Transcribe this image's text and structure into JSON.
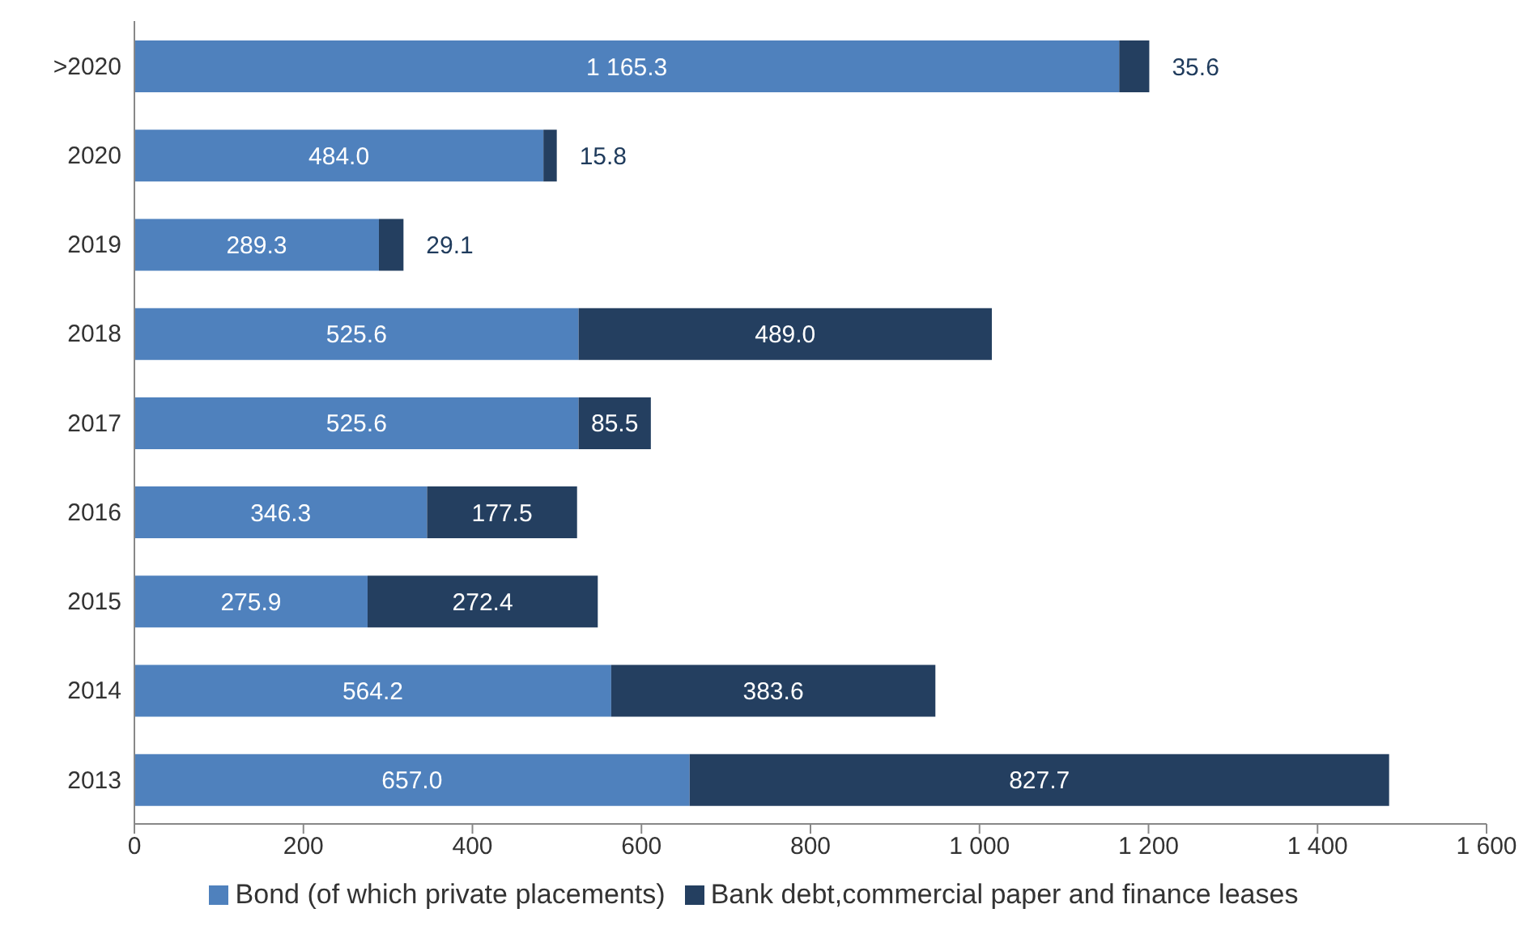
{
  "chart_data": {
    "type": "bar",
    "orientation": "horizontal",
    "stacked": true,
    "categories": [
      ">2020",
      "2020",
      "2019",
      "2018",
      "2017",
      "2016",
      "2015",
      "2014",
      "2013"
    ],
    "series": [
      {
        "name": "Bond (of which private placements)",
        "color": "#4f81bd",
        "values": [
          1165.3,
          484.0,
          289.3,
          525.6,
          525.6,
          346.3,
          275.9,
          564.2,
          657.0
        ],
        "value_labels": [
          "1 165.3",
          "484.0",
          "289.3",
          "525.6",
          "525.6",
          "346.3",
          "275.9",
          "564.2",
          "657.0"
        ]
      },
      {
        "name": "Bank debt,commercial paper and finance leases",
        "color": "#243f60",
        "values": [
          35.6,
          15.8,
          29.1,
          489.0,
          85.5,
          177.5,
          272.4,
          383.6,
          827.7
        ],
        "value_labels": [
          "35.6",
          "15.8",
          "29.1",
          "489.0",
          "85.5",
          "177.5",
          "272.4",
          "383.6",
          "827.7"
        ]
      }
    ],
    "xlim": [
      0,
      1600
    ],
    "xticks": [
      0,
      200,
      400,
      600,
      800,
      {
        "value": 1000,
        "label": "1 000"
      },
      {
        "value": 1200,
        "label": "1 200"
      },
      {
        "value": 1400,
        "label": "1 400"
      },
      {
        "value": 1600,
        "label": "1 600"
      }
    ],
    "grid": false,
    "legend": "bottom"
  }
}
